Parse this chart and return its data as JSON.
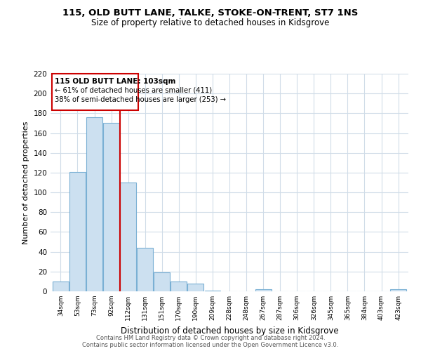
{
  "title": "115, OLD BUTT LANE, TALKE, STOKE-ON-TRENT, ST7 1NS",
  "subtitle": "Size of property relative to detached houses in Kidsgrove",
  "xlabel": "Distribution of detached houses by size in Kidsgrove",
  "ylabel": "Number of detached properties",
  "bar_labels": [
    "34sqm",
    "53sqm",
    "73sqm",
    "92sqm",
    "112sqm",
    "131sqm",
    "151sqm",
    "170sqm",
    "190sqm",
    "209sqm",
    "228sqm",
    "248sqm",
    "267sqm",
    "287sqm",
    "306sqm",
    "326sqm",
    "345sqm",
    "365sqm",
    "384sqm",
    "403sqm",
    "423sqm"
  ],
  "bar_values": [
    10,
    121,
    176,
    170,
    110,
    44,
    19,
    10,
    8,
    1,
    0,
    0,
    2,
    0,
    0,
    0,
    0,
    0,
    0,
    0,
    2
  ],
  "bar_color": "#cce0f0",
  "bar_edge_color": "#7ab0d4",
  "vline_x": 3.5,
  "annotation_title": "115 OLD BUTT LANE: 103sqm",
  "annotation_line1": "← 61% of detached houses are smaller (411)",
  "annotation_line2": "38% of semi-detached houses are larger (253) →",
  "vline_color": "#cc0000",
  "box_edge_color": "#cc0000",
  "ylim": [
    0,
    220
  ],
  "yticks": [
    0,
    20,
    40,
    60,
    80,
    100,
    120,
    140,
    160,
    180,
    200,
    220
  ],
  "footer_line1": "Contains HM Land Registry data © Crown copyright and database right 2024.",
  "footer_line2": "Contains public sector information licensed under the Open Government Licence v3.0.",
  "background_color": "#ffffff",
  "grid_color": "#d0dce8"
}
